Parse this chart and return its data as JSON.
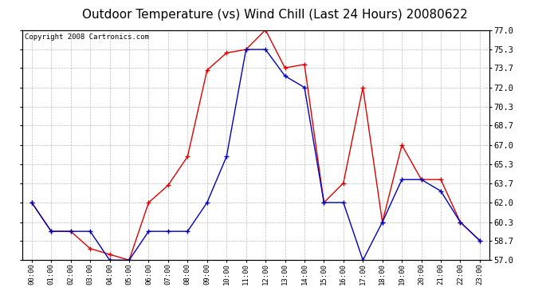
{
  "title": "Outdoor Temperature (vs) Wind Chill (Last 24 Hours) 20080622",
  "copyright": "Copyright 2008 Cartronics.com",
  "hours": [
    "00:00",
    "01:00",
    "02:00",
    "03:00",
    "04:00",
    "05:00",
    "06:00",
    "07:00",
    "08:00",
    "09:00",
    "10:00",
    "11:00",
    "12:00",
    "13:00",
    "14:00",
    "15:00",
    "16:00",
    "17:00",
    "18:00",
    "19:00",
    "20:00",
    "21:00",
    "22:00",
    "23:00"
  ],
  "temp": [
    62.0,
    59.5,
    59.5,
    58.0,
    57.5,
    57.0,
    62.0,
    63.5,
    66.0,
    73.5,
    75.0,
    75.3,
    77.0,
    73.7,
    74.0,
    62.0,
    63.7,
    72.0,
    60.3,
    67.0,
    64.0,
    64.0,
    60.3,
    58.7
  ],
  "windchill": [
    62.0,
    59.5,
    59.5,
    59.5,
    57.0,
    57.0,
    59.5,
    59.5,
    59.5,
    62.0,
    66.0,
    75.3,
    75.3,
    73.0,
    72.0,
    62.0,
    62.0,
    57.0,
    60.3,
    64.0,
    64.0,
    63.0,
    60.3,
    58.7
  ],
  "temp_color": "#dd0000",
  "windchill_color": "#0000bb",
  "ylim_min": 57.0,
  "ylim_max": 77.0,
  "yticks": [
    57.0,
    58.7,
    60.3,
    62.0,
    63.7,
    65.3,
    67.0,
    68.7,
    70.3,
    72.0,
    73.7,
    75.3,
    77.0
  ],
  "background_color": "#ffffff",
  "plot_bg_color": "#ffffff",
  "grid_color": "#bbbbbb",
  "title_fontsize": 11,
  "copyright_fontsize": 6.5
}
